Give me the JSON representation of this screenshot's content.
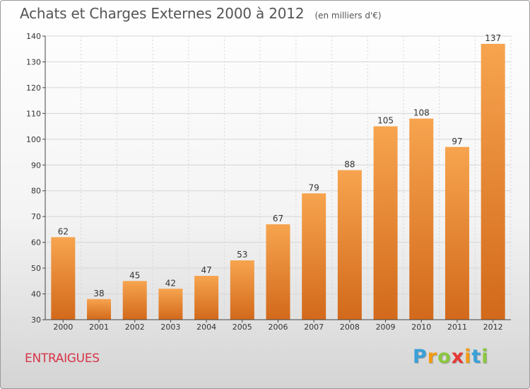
{
  "header": {
    "title": "Achats et Charges Externes 2000 à 2012",
    "unit": "(en milliers d'€)"
  },
  "footer": {
    "commune": "ENTRAIGUES",
    "logo_letters": [
      "P",
      "r",
      "o",
      "x",
      "i",
      "t",
      "i"
    ],
    "logo_colors": [
      "#3aa0d8",
      "#f39c12",
      "#8cc63f",
      "#e53935",
      "#f39c12",
      "#3aa0d8",
      "#8cc63f"
    ]
  },
  "chart_data": {
    "type": "bar",
    "title": "Achats et Charges Externes 2000 à 2012",
    "subtitle": "(en milliers d'€)",
    "xlabel": "",
    "ylabel": "",
    "categories": [
      "2000",
      "2001",
      "2002",
      "2003",
      "2004",
      "2005",
      "2006",
      "2007",
      "2008",
      "2009",
      "2010",
      "2011",
      "2012"
    ],
    "values": [
      62,
      38,
      45,
      42,
      47,
      53,
      67,
      79,
      88,
      105,
      108,
      97,
      137
    ],
    "ylim": [
      30,
      140
    ],
    "yticks": [
      30,
      40,
      50,
      60,
      70,
      80,
      90,
      100,
      110,
      120,
      130,
      140
    ],
    "grid": true,
    "legend": "none",
    "colors": {
      "bar_top": "#f7a44f",
      "bar_bottom": "#d2691b",
      "grid": "#d6d6d6",
      "axis": "#444444",
      "text": "#333333"
    }
  }
}
